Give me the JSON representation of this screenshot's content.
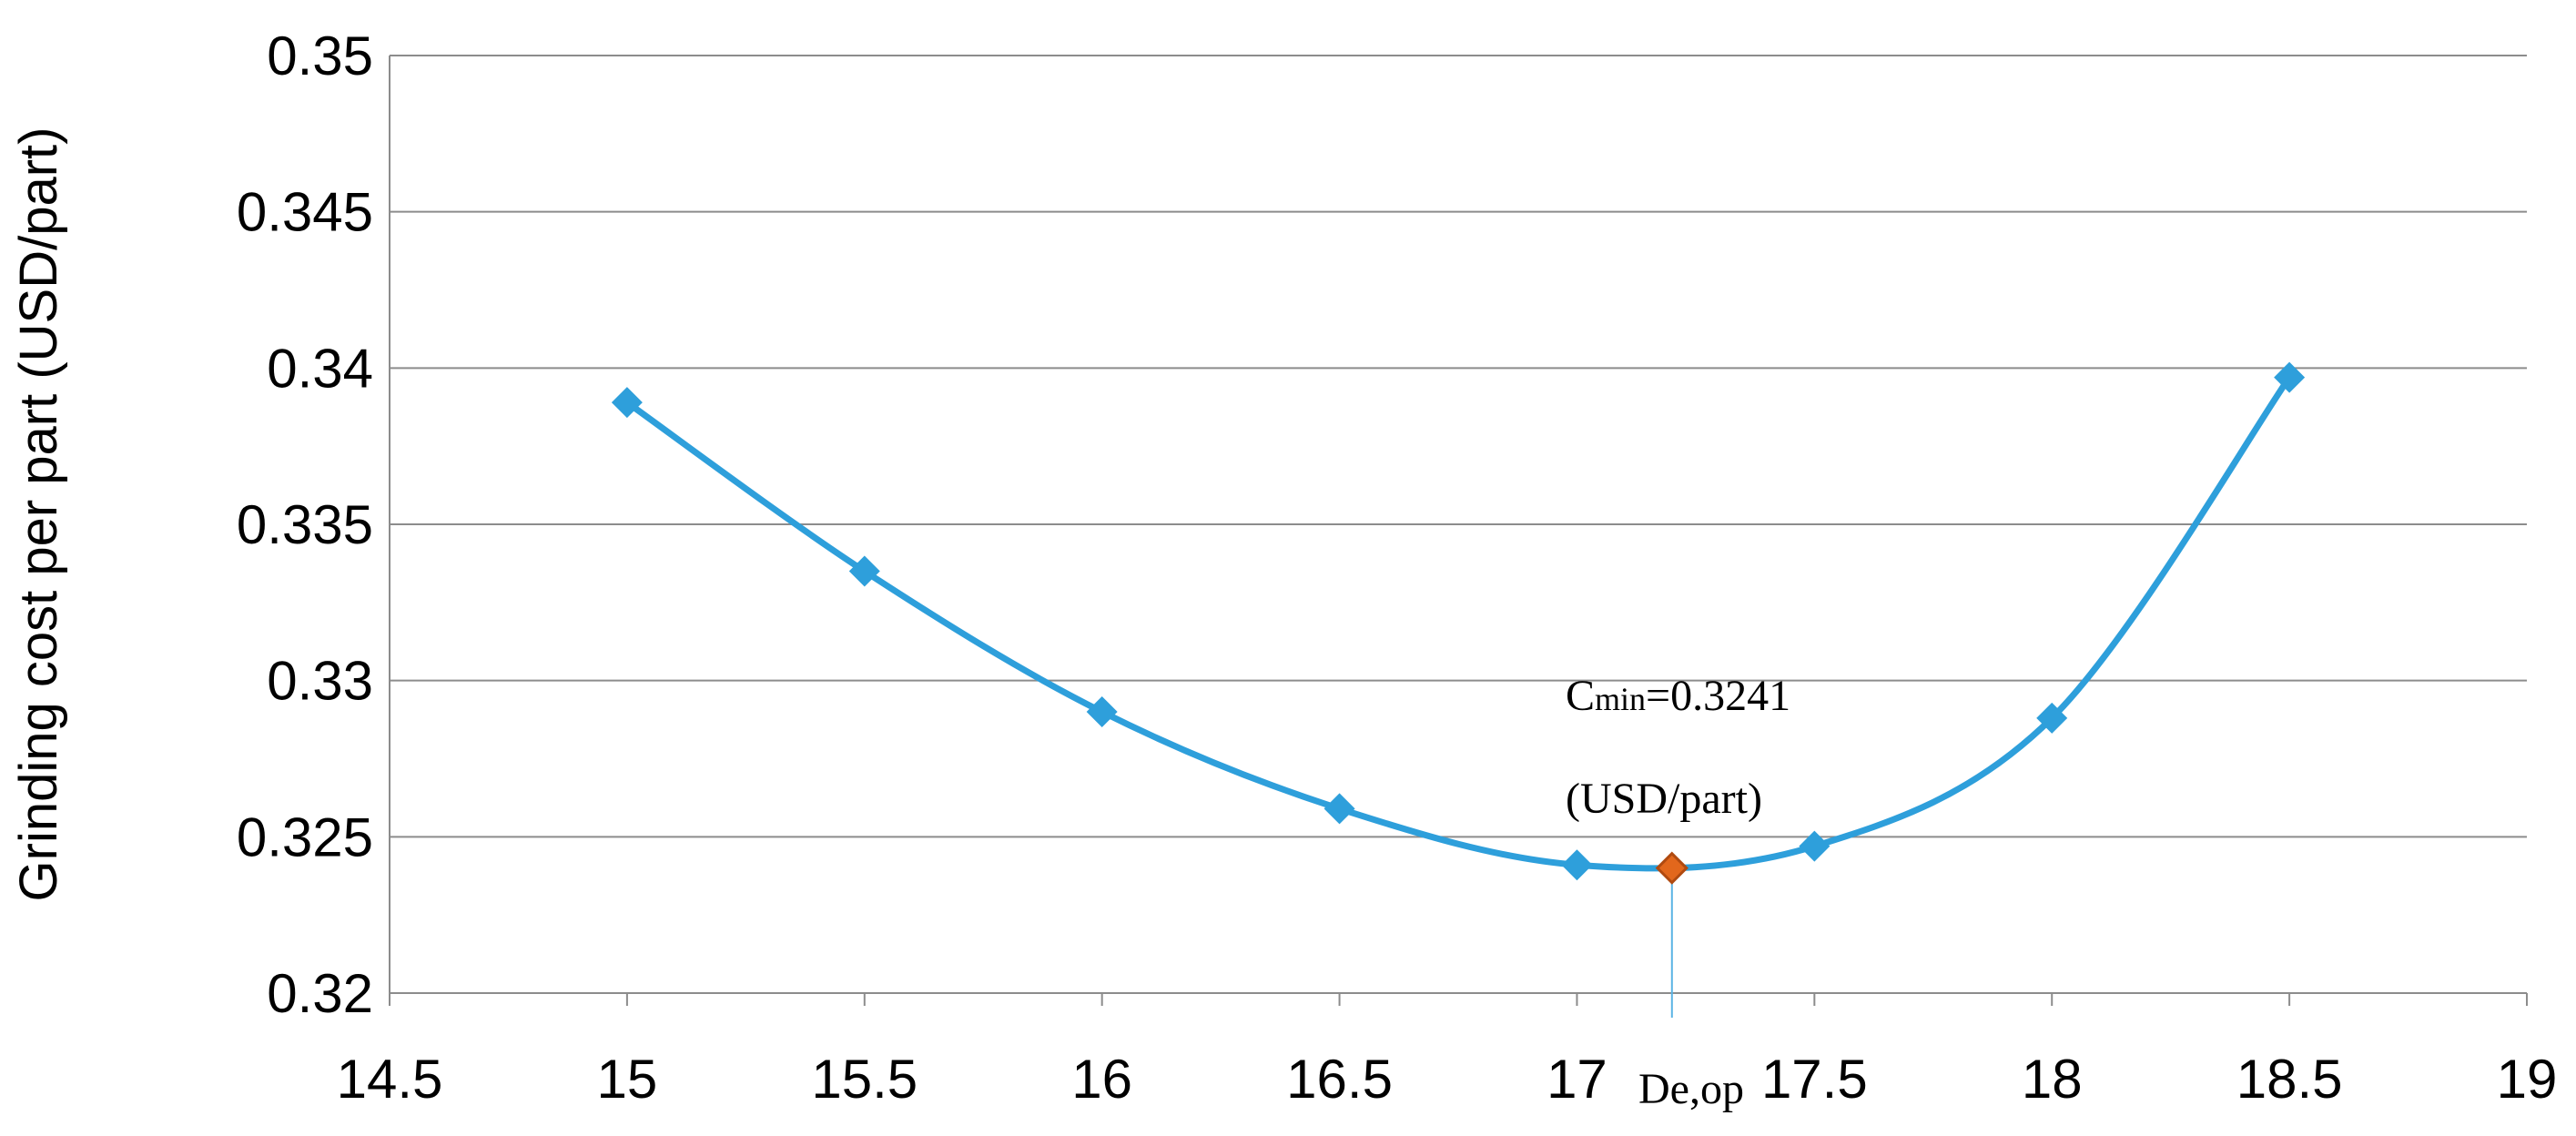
{
  "chart_data": {
    "type": "line",
    "title": "",
    "xlabel": "",
    "ylabel": "Grinding cost per part (USD/part)",
    "xlim": [
      14.5,
      19
    ],
    "ylim": [
      0.32,
      0.35
    ],
    "x_ticks": [
      "14.5",
      "15",
      "15.5",
      "16",
      "16.5",
      "17",
      "17.5",
      "18",
      "18.5",
      "19"
    ],
    "y_ticks": [
      "0.32",
      "0.325",
      "0.33",
      "0.335",
      "0.34",
      "0.345",
      "0.35"
    ],
    "x_tick_values": [
      14.5,
      15,
      15.5,
      16,
      16.5,
      17,
      17.5,
      18,
      18.5,
      19
    ],
    "y_tick_values": [
      0.32,
      0.325,
      0.33,
      0.335,
      0.34,
      0.345,
      0.35
    ],
    "grid": "horizontal",
    "legend": "none",
    "series": [
      {
        "x": [
          15,
          15.5,
          16,
          16.5,
          17,
          17.5,
          18,
          18.5
        ],
        "y": [
          0.3389,
          0.3335,
          0.329,
          0.3259,
          0.3241,
          0.3247,
          0.3288,
          0.3397
        ],
        "color": "#2E9FDB",
        "marker": "diamond",
        "smooth": true
      }
    ],
    "optimum_point": {
      "x": 17.2,
      "y": 0.324,
      "color": "#E2671C",
      "edge_color": "#B04A10"
    },
    "annotations": {
      "cmin_main": "C",
      "cmin_sub": "min",
      "cmin_value": "=0.3241",
      "cmin_unit": "(USD/part)",
      "deop_label": "De,op"
    },
    "colors": {
      "grid": "#8C8C8C",
      "axis": "#8C8C8C",
      "drop_line": "#5BB4E5"
    }
  }
}
